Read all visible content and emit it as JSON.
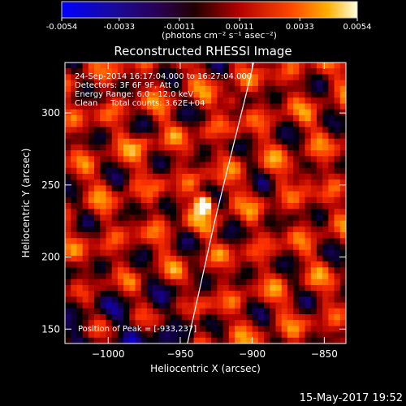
{
  "colorbar": {
    "ticks": [
      "-0.0054",
      "-0.0033",
      "-0.0011",
      "0.0011",
      "0.0033",
      "0.0054"
    ],
    "tick_values": [
      -0.0054,
      -0.0033,
      -0.0011,
      0.0011,
      0.0033,
      0.0054
    ],
    "unit_label": "(photons cm⁻² s⁻¹ asec⁻²)",
    "range": [
      -0.0054,
      0.0054
    ]
  },
  "header": {
    "title": "Reconstructed RHESSI Image"
  },
  "annotations": {
    "line1": "24-Sep-2014 16:17:04.000 to 16:27:04.000",
    "line2": "Detectors: 3F 6F 9F, Att 0",
    "line3": "Energy Range: 6.0 - 12.0 keV",
    "line4": "Clean     Total counts: 3.62E+04",
    "peak": "Position of Peak = [-933,237]"
  },
  "footer": {
    "date": "15-May-2017 19:52"
  },
  "chart_data": {
    "type": "heatmap",
    "title": "Reconstructed RHESSI Image",
    "xlabel": "Heliocentric X (arcsec)",
    "ylabel": "Heliocentric Y (arcsec)",
    "xlim": [
      -1030,
      -835
    ],
    "ylim": [
      140,
      335
    ],
    "x_ticks": [
      -1000,
      -950,
      -900,
      -850
    ],
    "x_tick_labels": [
      "−1000",
      "−950",
      "−900",
      "−850"
    ],
    "y_ticks": [
      150,
      200,
      250,
      300
    ],
    "y_tick_labels": [
      "150",
      "200",
      "250",
      "300"
    ],
    "peak": {
      "x": -933,
      "y": 237
    },
    "secondary_sources": [
      {
        "x": -975,
        "y": 280
      },
      {
        "x": -862,
        "y": 258
      },
      {
        "x": -915,
        "y": 308
      }
    ],
    "limb_curve": [
      {
        "x": -945,
        "y": 140
      },
      {
        "x": -936,
        "y": 180
      },
      {
        "x": -926,
        "y": 225
      },
      {
        "x": -915,
        "y": 270
      },
      {
        "x": -903,
        "y": 318
      },
      {
        "x": -899,
        "y": 335
      }
    ],
    "grid": false,
    "colormap": [
      "#0000ff",
      "#1a0066",
      "#000000",
      "#aa0000",
      "#ff3300",
      "#ffaa00",
      "#ffffff"
    ]
  }
}
